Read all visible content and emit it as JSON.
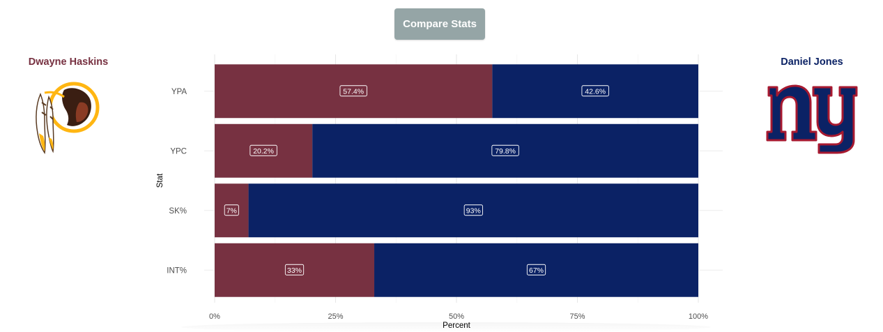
{
  "header": {
    "compare_label": "Compare Stats"
  },
  "players": {
    "left": {
      "name": "Dwayne Haskins",
      "team_logo": "redskins-logo",
      "color": "#773141"
    },
    "right": {
      "name": "Daniel Jones",
      "team_logo": "giants-ny-logo",
      "color": "#0b2265"
    }
  },
  "chart_data": {
    "type": "bar",
    "orientation": "horizontal",
    "stacked": true,
    "title": "",
    "xlabel": "Percent",
    "ylabel": "Stat",
    "xlim": [
      0,
      100
    ],
    "x_ticks": [
      "0%",
      "25%",
      "50%",
      "75%",
      "100%"
    ],
    "categories": [
      "YPA",
      "YPC",
      "SK%",
      "INT%"
    ],
    "series": [
      {
        "name": "Dwayne Haskins",
        "color": "#773141",
        "values": [
          57.4,
          20.2,
          7,
          33
        ],
        "labels": [
          "57.4%",
          "20.2%",
          "7%",
          "33%"
        ]
      },
      {
        "name": "Daniel Jones",
        "color": "#0b2265",
        "values": [
          42.6,
          79.8,
          93,
          67
        ],
        "labels": [
          "42.6%",
          "79.8%",
          "93%",
          "67%"
        ]
      }
    ],
    "grid": true,
    "legend": "none"
  }
}
